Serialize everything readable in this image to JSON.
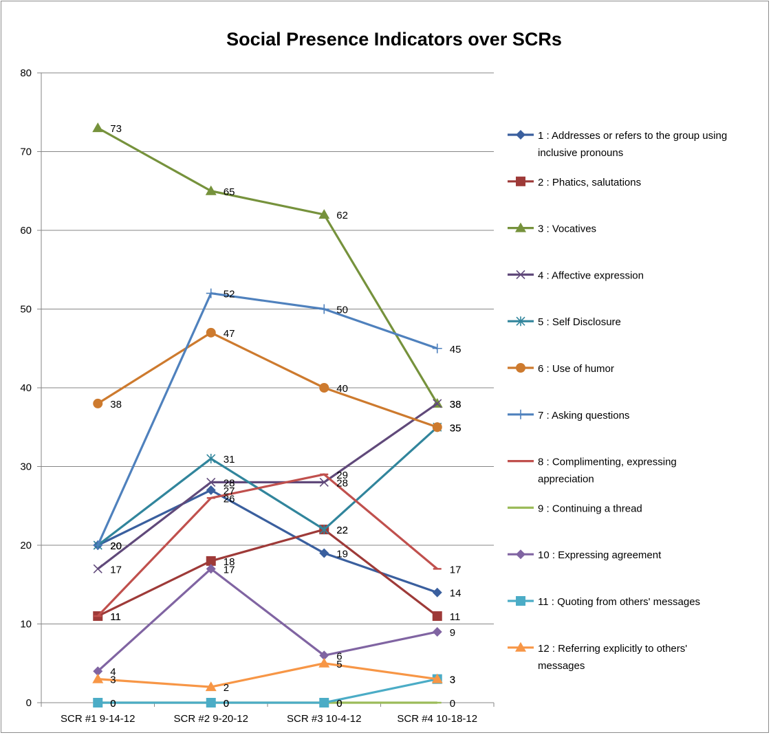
{
  "chart_data": {
    "type": "line",
    "title": "Social Presence Indicators over SCRs",
    "xlabel": "",
    "ylabel": "",
    "ylim": [
      0,
      80
    ],
    "yticks": [
      0,
      10,
      20,
      30,
      40,
      50,
      60,
      70,
      80
    ],
    "grid": true,
    "legend_position": "right",
    "categories": [
      "SCR #1 9-14-12",
      "SCR #2 9-20-12",
      "SCR #3 10-4-12",
      "SCR #4 10-18-12"
    ],
    "series": [
      {
        "name": "1 : Addresses or refers to the group using inclusive pronouns",
        "legend_lines": [
          "1 : Addresses or refers to the group using",
          "inclusive pronouns"
        ],
        "values": [
          20,
          27,
          19,
          14
        ],
        "color": "#3a5f9e",
        "marker": "diamond",
        "data_labels": [
          "20",
          "27",
          "19",
          "14"
        ]
      },
      {
        "name": "2 : Phatics, salutations",
        "legend_lines": [
          "2 : Phatics, salutations"
        ],
        "values": [
          11,
          18,
          22,
          11
        ],
        "color": "#9e3a38",
        "marker": "square",
        "data_labels": [
          "11",
          "18",
          "22",
          "11"
        ]
      },
      {
        "name": "3 : Vocatives",
        "legend_lines": [
          "3 : Vocatives"
        ],
        "values": [
          73,
          65,
          62,
          38
        ],
        "color": "#76923c",
        "marker": "triangle",
        "data_labels": [
          "73",
          "65",
          "62",
          "38"
        ]
      },
      {
        "name": "4 : Affective expression",
        "legend_lines": [
          "4 : Affective expression"
        ],
        "values": [
          17,
          28,
          28,
          38
        ],
        "color": "#60497a",
        "marker": "x",
        "data_labels": [
          "17",
          "28",
          "28",
          "38"
        ]
      },
      {
        "name": "5 : Self Disclosure",
        "legend_lines": [
          "5 : Self Disclosure"
        ],
        "values": [
          20,
          31,
          22,
          35
        ],
        "color": "#31859c",
        "marker": "star",
        "data_labels": [
          "20",
          "31",
          "22",
          "35"
        ]
      },
      {
        "name": "6 : Use of humor",
        "legend_lines": [
          "6 : Use of humor"
        ],
        "values": [
          38,
          47,
          40,
          35
        ],
        "color": "#cd7a2e",
        "marker": "circle",
        "data_labels": [
          "38",
          "47",
          "40",
          "35"
        ]
      },
      {
        "name": "7 : Asking questions",
        "legend_lines": [
          "7 : Asking questions"
        ],
        "values": [
          20,
          52,
          50,
          45
        ],
        "color": "#4f81bd",
        "marker": "plus",
        "data_labels": [
          "20",
          "52",
          "50",
          "45"
        ]
      },
      {
        "name": "8 : Complimenting, expressing appreciation",
        "legend_lines": [
          "8 : Complimenting, expressing",
          "appreciation"
        ],
        "values": [
          11,
          26,
          29,
          17
        ],
        "color": "#c0504d",
        "marker": "dash",
        "data_labels": [
          "11",
          "26",
          "29",
          "17"
        ]
      },
      {
        "name": "9 : Continuing a thread",
        "legend_lines": [
          "9 : Continuing a thread"
        ],
        "values": [
          0,
          0,
          0,
          0
        ],
        "color": "#9bbb59",
        "marker": "dash",
        "data_labels": [
          "0",
          "0",
          "0",
          "0"
        ]
      },
      {
        "name": "10 : Expressing agreement",
        "legend_lines": [
          "10 : Expressing agreement"
        ],
        "values": [
          4,
          17,
          6,
          9
        ],
        "color": "#8064a2",
        "marker": "diamond",
        "data_labels": [
          "4",
          "17",
          "6",
          "9"
        ]
      },
      {
        "name": "11 : Quoting from others' messages",
        "legend_lines": [
          "11 : Quoting from others' messages"
        ],
        "values": [
          0,
          0,
          0,
          3
        ],
        "color": "#4bacc6",
        "marker": "square",
        "data_labels": [
          "0",
          "0",
          "0",
          "3"
        ]
      },
      {
        "name": "12 : Referring explicitly to others' messages",
        "legend_lines": [
          "12 : Referring explicitly to others'",
          "messages"
        ],
        "values": [
          3,
          2,
          5,
          3
        ],
        "color": "#f79646",
        "marker": "triangle",
        "data_labels": [
          "3",
          "2",
          "5",
          "3"
        ]
      }
    ]
  }
}
